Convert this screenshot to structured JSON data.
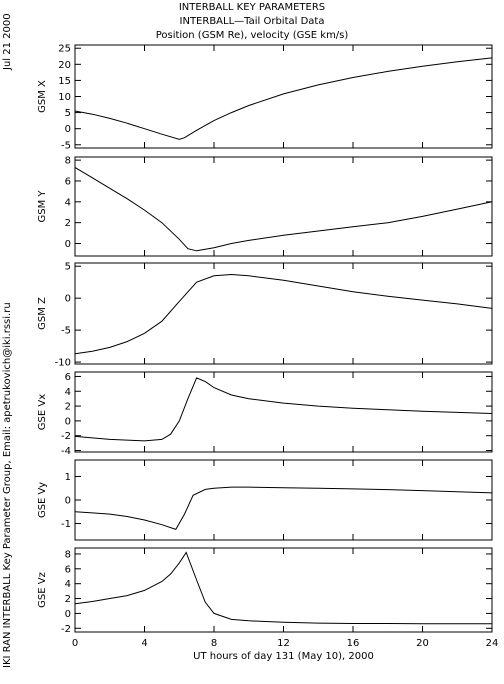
{
  "titles": {
    "line1": "INTERBALL KEY PARAMETERS",
    "line2": "INTERBALL—Tail Orbital Data",
    "line3": "Position (GSM Re), velocity (GSE km/s)"
  },
  "side_date": "Jul 21 2000",
  "side_credit": "IKI RAN INTERBALL Key Parameter Group, Email: apetrukovich@iki.rssi.ru",
  "chart_data": [
    {
      "type": "line",
      "ylabel": "GSM X",
      "xlim": [
        0,
        24
      ],
      "ylim": [
        -6,
        26
      ],
      "yticks": [
        -5,
        0,
        5,
        10,
        15,
        20,
        25
      ],
      "x": [
        0,
        1,
        2,
        3,
        4,
        5,
        6,
        6.3,
        7,
        8,
        9,
        10,
        12,
        14,
        16,
        18,
        20,
        22,
        24
      ],
      "y": [
        5.5,
        4.5,
        3.2,
        1.7,
        0,
        -1.7,
        -3.3,
        -2.8,
        -0.5,
        2.5,
        5,
        7.2,
        10.8,
        13.6,
        15.9,
        17.8,
        19.4,
        20.8,
        22
      ]
    },
    {
      "type": "line",
      "ylabel": "GSM Y",
      "xlim": [
        0,
        24
      ],
      "ylim": [
        -1.2,
        8.3
      ],
      "yticks": [
        0,
        2,
        4,
        6,
        8
      ],
      "x": [
        0,
        1,
        2,
        3,
        4,
        5,
        6,
        6.5,
        7,
        8,
        9,
        10,
        12,
        14,
        16,
        18,
        20,
        22,
        24
      ],
      "y": [
        7.3,
        6.3,
        5.3,
        4.3,
        3.2,
        2,
        0.4,
        -0.5,
        -0.7,
        -0.4,
        0,
        0.3,
        0.8,
        1.2,
        1.6,
        2,
        2.6,
        3.3,
        4
      ]
    },
    {
      "type": "line",
      "ylabel": "GSM Z",
      "xlim": [
        0,
        24
      ],
      "ylim": [
        -10.3,
        5.5
      ],
      "yticks": [
        -10,
        -5,
        0,
        5
      ],
      "x": [
        0,
        1,
        2,
        3,
        4,
        5,
        6,
        7,
        8,
        9,
        10,
        12,
        14,
        16,
        18,
        20,
        22,
        24
      ],
      "y": [
        -8.7,
        -8.3,
        -7.7,
        -6.8,
        -5.5,
        -3.6,
        -0.5,
        2.5,
        3.5,
        3.7,
        3.5,
        2.8,
        1.9,
        1,
        0.3,
        -0.3,
        -0.9,
        -1.6
      ]
    },
    {
      "type": "line",
      "ylabel": "GSE Vx",
      "xlim": [
        0,
        24
      ],
      "ylim": [
        -4.2,
        6.6
      ],
      "yticks": [
        -4,
        -2,
        0,
        2,
        4,
        6
      ],
      "x": [
        0,
        1,
        2,
        3,
        4,
        5,
        5.5,
        6,
        6.5,
        7,
        7.5,
        8,
        9,
        10,
        12,
        14,
        16,
        18,
        20,
        22,
        24
      ],
      "y": [
        -2.1,
        -2.3,
        -2.5,
        -2.6,
        -2.7,
        -2.5,
        -1.8,
        0,
        3,
        5.8,
        5.3,
        4.5,
        3.5,
        3,
        2.4,
        2,
        1.7,
        1.5,
        1.3,
        1.15,
        1
      ]
    },
    {
      "type": "line",
      "ylabel": "GSE Vy",
      "xlim": [
        0,
        24
      ],
      "ylim": [
        -1.7,
        1.7
      ],
      "yticks": [
        -1,
        0,
        1
      ],
      "x": [
        0,
        1,
        2,
        3,
        4,
        5,
        5.8,
        6.3,
        6.8,
        7.5,
        8,
        9,
        10,
        12,
        14,
        16,
        18,
        20,
        22,
        24
      ],
      "y": [
        -0.5,
        -0.55,
        -0.6,
        -0.7,
        -0.85,
        -1.05,
        -1.25,
        -0.6,
        0.2,
        0.45,
        0.5,
        0.55,
        0.55,
        0.52,
        0.5,
        0.47,
        0.44,
        0.4,
        0.35,
        0.3
      ]
    },
    {
      "type": "line",
      "ylabel": "GSE Vz",
      "xlim": [
        0,
        24
      ],
      "ylim": [
        -2.5,
        8.8
      ],
      "yticks": [
        -2,
        0,
        2,
        4,
        6,
        8
      ],
      "x": [
        0,
        1,
        2,
        3,
        4,
        5,
        5.5,
        6,
        6.4,
        7,
        7.5,
        8,
        9,
        10,
        12,
        14,
        16,
        18,
        20,
        22,
        24
      ],
      "y": [
        1.3,
        1.6,
        2,
        2.4,
        3.1,
        4.3,
        5.3,
        6.8,
        8.2,
        4.5,
        1.5,
        0,
        -0.8,
        -1,
        -1.2,
        -1.3,
        -1.35,
        -1.35,
        -1.4,
        -1.4,
        -1.4
      ]
    }
  ],
  "x_axis": {
    "ticks": [
      0,
      4,
      8,
      12,
      16,
      20,
      24
    ],
    "label": "UT hours of day 131 (May 10), 2000"
  }
}
